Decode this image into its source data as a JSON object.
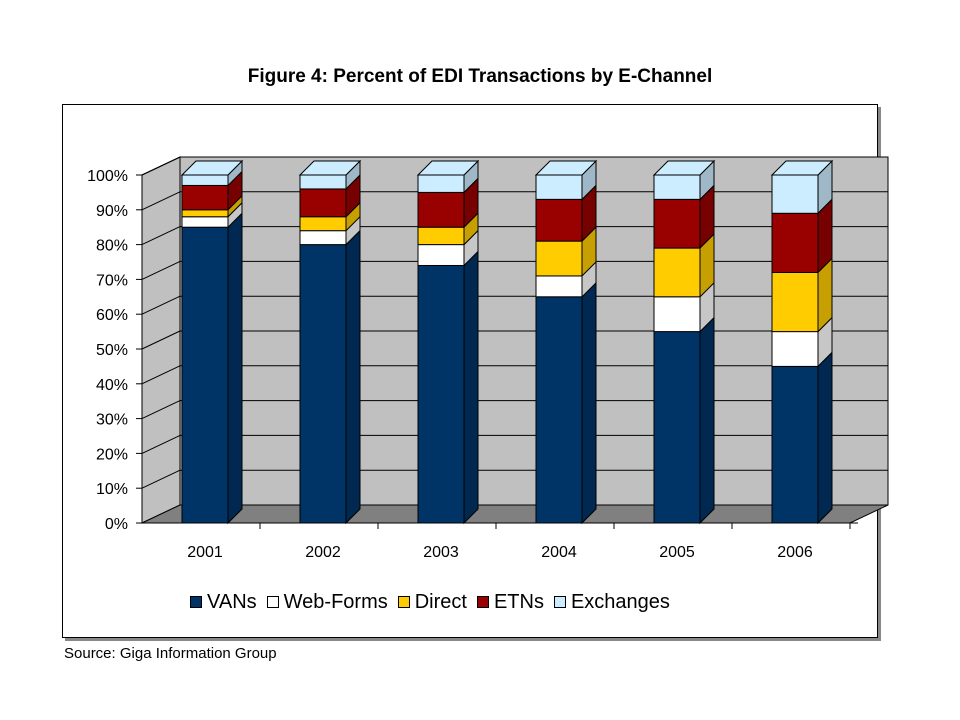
{
  "chart_data": {
    "type": "bar",
    "stacked": true,
    "three_d": true,
    "title": "Figure 4: Percent of EDI Transactions by E-Channel",
    "categories": [
      "2001",
      "2002",
      "2003",
      "2004",
      "2005",
      "2006"
    ],
    "series": [
      {
        "name": "VANs",
        "color": "#003366",
        "values": [
          85,
          80,
          74,
          65,
          55,
          45
        ]
      },
      {
        "name": "Web-Forms",
        "color": "#ffffff",
        "values": [
          3,
          4,
          6,
          6,
          10,
          10
        ]
      },
      {
        "name": "Direct",
        "color": "#ffcc00",
        "values": [
          2,
          4,
          5,
          10,
          14,
          17
        ]
      },
      {
        "name": "ETNs",
        "color": "#990000",
        "values": [
          7,
          8,
          10,
          12,
          14,
          17
        ]
      },
      {
        "name": "Exchanges",
        "color": "#ccecff",
        "values": [
          3,
          4,
          5,
          7,
          7,
          11
        ]
      }
    ],
    "y_ticks": [
      "0%",
      "10%",
      "20%",
      "30%",
      "40%",
      "50%",
      "60%",
      "70%",
      "80%",
      "90%",
      "100%"
    ],
    "ylim": [
      0,
      100
    ],
    "grid": true,
    "legend_position": "bottom",
    "colors": {
      "wall": "#c0c0c0",
      "floor": "#808080",
      "gridline": "#000000"
    }
  },
  "source": "Source: Giga Information Group"
}
